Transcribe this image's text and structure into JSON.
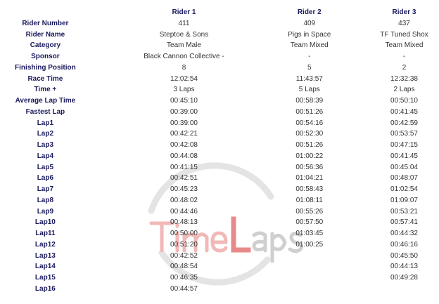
{
  "watermark": {
    "text_part1": "Time",
    "text_part2": "L",
    "text_part3": "aps",
    "accent": "#e88a8a",
    "gray": "#c8c8c8"
  },
  "header": [
    "",
    "Rider 1",
    "Rider 2",
    "Rider 3"
  ],
  "rows": [
    {
      "label": "Rider Number",
      "values": [
        "411",
        "409",
        "437"
      ]
    },
    {
      "label": "Rider Name",
      "values": [
        "Steptoe & Sons",
        "Pigs in Space",
        "TF Tuned Shox"
      ]
    },
    {
      "label": "Category",
      "values": [
        "Team Male",
        "Team Mixed",
        "Team Mixed"
      ]
    },
    {
      "label": "Sponsor",
      "values": [
        "Black Cannon Collective -",
        "-",
        "-"
      ]
    },
    {
      "label": "Finishing Position",
      "values": [
        "8",
        "5",
        "2"
      ]
    },
    {
      "label": "Race Time",
      "values": [
        "12:02:54",
        "11:43:57",
        "12:32:38"
      ]
    },
    {
      "label": "Time +",
      "values": [
        "3 Laps",
        "5 Laps",
        "2 Laps"
      ]
    },
    {
      "label": "Average Lap Time",
      "values": [
        "00:45:10",
        "00:58:39",
        "00:50:10"
      ]
    },
    {
      "label": "Fastest Lap",
      "values": [
        "00:39:00",
        "00:51:26",
        "00:41:45"
      ]
    },
    {
      "label": "Lap1",
      "values": [
        "00:39:00",
        "00:54:16",
        "00:42:59"
      ]
    },
    {
      "label": "Lap2",
      "values": [
        "00:42:21",
        "00:52:30",
        "00:53:57"
      ]
    },
    {
      "label": "Lap3",
      "values": [
        "00:42:08",
        "00:51:26",
        "00:47:15"
      ]
    },
    {
      "label": "Lap4",
      "values": [
        "00:44:08",
        "01:00:22",
        "00:41:45"
      ]
    },
    {
      "label": "Lap5",
      "values": [
        "00:41:15",
        "00:56:36",
        "00:45:04"
      ]
    },
    {
      "label": "Lap6",
      "values": [
        "00:42:51",
        "01:04:21",
        "00:48:07"
      ]
    },
    {
      "label": "Lap7",
      "values": [
        "00:45:23",
        "00:58:43",
        "01:02:54"
      ]
    },
    {
      "label": "Lap8",
      "values": [
        "00:48:02",
        "01:08:11",
        "01:09:07"
      ]
    },
    {
      "label": "Lap9",
      "values": [
        "00:44:46",
        "00:55:26",
        "00:53:21"
      ]
    },
    {
      "label": "Lap10",
      "values": [
        "00:48:13",
        "00:57:50",
        "00:57:41"
      ]
    },
    {
      "label": "Lap11",
      "values": [
        "00:50:00",
        "01:03:45",
        "00:44:32"
      ]
    },
    {
      "label": "Lap12",
      "values": [
        "00:51:20",
        "01:00:25",
        "00:46:16"
      ]
    },
    {
      "label": "Lap13",
      "values": [
        "00:42:52",
        "",
        "00:45:50"
      ]
    },
    {
      "label": "Lap14",
      "values": [
        "00:48:54",
        "",
        "00:44:13"
      ]
    },
    {
      "label": "Lap15",
      "values": [
        "00:46:35",
        "",
        "00:49:28"
      ]
    },
    {
      "label": "Lap16",
      "values": [
        "00:44:57",
        "",
        ""
      ]
    }
  ]
}
